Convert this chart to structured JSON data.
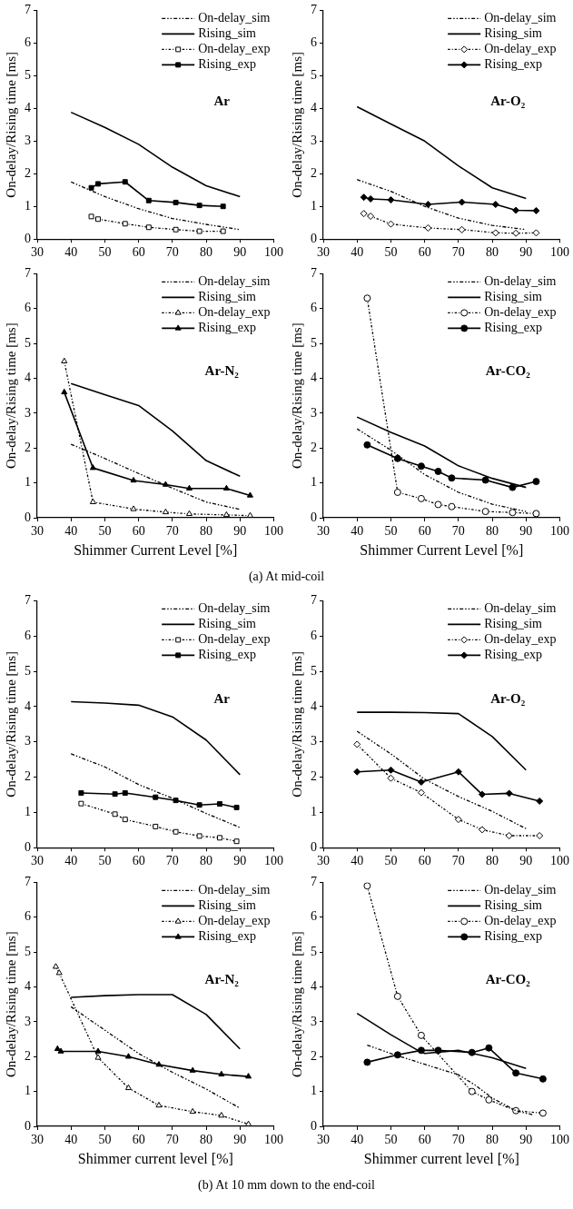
{
  "chart_data": [
    {
      "type": "line",
      "ylabel": "On-delay/Rising time [ms]",
      "xlim": [
        30,
        100
      ],
      "ylim": [
        0,
        7
      ],
      "xticks": [
        30,
        40,
        50,
        60,
        70,
        80,
        90,
        100
      ],
      "yticks": [
        0,
        1,
        2,
        3,
        4,
        5,
        6,
        7
      ],
      "grid": false,
      "legend": "top right",
      "annotations": [
        "Ar"
      ],
      "series": [
        {
          "name": "On-delay_sim",
          "color": "#000000",
          "line_style": "dashed",
          "marker": "none",
          "x": [
            40,
            50,
            60,
            70,
            80,
            90
          ],
          "values": [
            1.75,
            1.3,
            0.93,
            0.63,
            0.45,
            0.29
          ]
        },
        {
          "name": "Rising_sim",
          "color": "#000000",
          "line_style": "solid",
          "marker": "none",
          "x": [
            40,
            50,
            60,
            70,
            80,
            90
          ],
          "values": [
            3.88,
            3.42,
            2.9,
            2.2,
            1.63,
            1.3
          ]
        },
        {
          "name": "On-delay_exp",
          "color": "#000000",
          "line_style": "dotted",
          "marker": "square",
          "x": [
            46,
            48,
            56,
            63,
            71,
            78,
            85
          ],
          "values": [
            0.69,
            0.61,
            0.47,
            0.36,
            0.29,
            0.24,
            0.24
          ]
        },
        {
          "name": "Rising_exp",
          "color": "#000000",
          "line_style": "solid",
          "marker": "square",
          "x": [
            46,
            48,
            56,
            63,
            71,
            78,
            85
          ],
          "values": [
            1.57,
            1.69,
            1.75,
            1.18,
            1.12,
            1.03,
            1.0
          ]
        }
      ]
    },
    {
      "type": "line",
      "ylabel": "On-delay/Rising time [ms]",
      "xlim": [
        30,
        100
      ],
      "ylim": [
        0,
        7
      ],
      "xticks": [
        30,
        40,
        50,
        60,
        70,
        80,
        90,
        100
      ],
      "yticks": [
        0,
        1,
        2,
        3,
        4,
        5,
        6,
        7
      ],
      "grid": false,
      "legend": "top right",
      "annotations": [
        "Ar-O₂"
      ],
      "series": [
        {
          "name": "On-delay_sim",
          "color": "#000000",
          "line_style": "dashed",
          "marker": "none",
          "x": [
            40,
            50,
            60,
            70,
            80,
            90
          ],
          "values": [
            1.82,
            1.46,
            1.0,
            0.64,
            0.42,
            0.29
          ]
        },
        {
          "name": "Rising_sim",
          "color": "#000000",
          "line_style": "solid",
          "marker": "none",
          "x": [
            40,
            50,
            60,
            70,
            80,
            90
          ],
          "values": [
            4.05,
            3.52,
            3.0,
            2.24,
            1.57,
            1.24
          ]
        },
        {
          "name": "On-delay_exp",
          "color": "#000000",
          "line_style": "dotted",
          "marker": "diamond",
          "x": [
            42,
            44,
            50,
            61,
            71,
            81,
            87,
            93
          ],
          "values": [
            0.78,
            0.7,
            0.46,
            0.34,
            0.29,
            0.19,
            0.18,
            0.19
          ]
        },
        {
          "name": "Rising_exp",
          "color": "#000000",
          "line_style": "solid",
          "marker": "diamond",
          "x": [
            42,
            44,
            50,
            61,
            71,
            81,
            87,
            93
          ],
          "values": [
            1.28,
            1.23,
            1.2,
            1.06,
            1.13,
            1.06,
            0.88,
            0.87
          ]
        }
      ]
    },
    {
      "type": "line",
      "xlabel": "Shimmer Current Level [%]",
      "ylabel": "On-delay/Rising time [ms]",
      "xlim": [
        30,
        100
      ],
      "ylim": [
        0,
        7
      ],
      "xticks": [
        30,
        40,
        50,
        60,
        70,
        80,
        90,
        100
      ],
      "yticks": [
        0,
        1,
        2,
        3,
        4,
        5,
        6,
        7
      ],
      "grid": false,
      "legend": "top right",
      "annotations": [
        "Ar-N₂",
        "(a) At mid-coil"
      ],
      "series": [
        {
          "name": "On-delay_sim",
          "color": "#000000",
          "line_style": "dashed",
          "marker": "none",
          "x": [
            40,
            50,
            60,
            70,
            80,
            90
          ],
          "values": [
            2.11,
            1.7,
            1.27,
            0.85,
            0.45,
            0.24
          ]
        },
        {
          "name": "Rising_sim",
          "color": "#000000",
          "line_style": "solid",
          "marker": "none",
          "x": [
            40,
            50,
            60,
            70,
            80,
            90
          ],
          "values": [
            3.85,
            3.53,
            3.22,
            2.49,
            1.64,
            1.19
          ]
        },
        {
          "name": "On-delay_exp",
          "color": "#000000",
          "line_style": "dotted",
          "marker": "triangle",
          "x": [
            38,
            46.5,
            58.5,
            68,
            75,
            86,
            93
          ],
          "values": [
            4.49,
            0.45,
            0.25,
            0.16,
            0.11,
            0.08,
            0.06
          ]
        },
        {
          "name": "Rising_exp",
          "color": "#000000",
          "line_style": "solid",
          "marker": "triangle",
          "x": [
            38,
            46.5,
            58.5,
            68,
            75,
            86,
            93
          ],
          "values": [
            3.6,
            1.43,
            1.07,
            0.95,
            0.84,
            0.84,
            0.64
          ]
        }
      ]
    },
    {
      "type": "line",
      "xlabel": "Shimmer Current Level [%]",
      "ylabel": "On-delay/Rising time [ms]",
      "xlim": [
        30,
        100
      ],
      "ylim": [
        0,
        7
      ],
      "xticks": [
        30,
        40,
        50,
        60,
        70,
        80,
        90,
        100
      ],
      "yticks": [
        0,
        1,
        2,
        3,
        4,
        5,
        6,
        7
      ],
      "grid": false,
      "legend": "top right",
      "annotations": [
        "Ar-CO₂"
      ],
      "series": [
        {
          "name": "On-delay_sim",
          "color": "#000000",
          "line_style": "dashed",
          "marker": "none",
          "x": [
            40,
            50,
            60,
            70,
            80,
            90
          ],
          "values": [
            2.55,
            1.94,
            1.24,
            0.73,
            0.39,
            0.18
          ]
        },
        {
          "name": "Rising_sim",
          "color": "#000000",
          "line_style": "solid",
          "marker": "none",
          "x": [
            40,
            50,
            60,
            70,
            80,
            90
          ],
          "values": [
            2.89,
            2.45,
            2.06,
            1.49,
            1.13,
            0.87
          ]
        },
        {
          "name": "On-delay_exp",
          "color": "#000000",
          "line_style": "dotted",
          "marker": "circle",
          "x": [
            43,
            52,
            59,
            64,
            68,
            78,
            86,
            93
          ],
          "values": [
            6.3,
            0.73,
            0.55,
            0.38,
            0.32,
            0.18,
            0.15,
            0.12
          ]
        },
        {
          "name": "Rising_exp",
          "color": "#000000",
          "line_style": "solid",
          "marker": "circle",
          "x": [
            43,
            52,
            59,
            64,
            68,
            78,
            86,
            93
          ],
          "values": [
            2.09,
            1.7,
            1.48,
            1.33,
            1.14,
            1.08,
            0.87,
            1.04
          ]
        }
      ]
    },
    {
      "type": "line",
      "ylabel": "On-delay/Rising time [ms]",
      "xlim": [
        30,
        100
      ],
      "ylim": [
        0,
        7
      ],
      "xticks": [
        30,
        40,
        50,
        60,
        70,
        80,
        90,
        100
      ],
      "yticks": [
        0,
        1,
        2,
        3,
        4,
        5,
        6,
        7
      ],
      "grid": false,
      "legend": "top right",
      "annotations": [
        "Ar"
      ],
      "series": [
        {
          "name": "On-delay_sim",
          "color": "#000000",
          "line_style": "dashed",
          "marker": "none",
          "x": [
            40,
            50,
            60,
            70,
            80,
            90
          ],
          "values": [
            2.66,
            2.29,
            1.79,
            1.4,
            0.97,
            0.57
          ]
        },
        {
          "name": "Rising_sim",
          "color": "#000000",
          "line_style": "solid",
          "marker": "none",
          "x": [
            40,
            50,
            60,
            70,
            80,
            90
          ],
          "values": [
            4.14,
            4.1,
            4.04,
            3.71,
            3.05,
            2.07
          ]
        },
        {
          "name": "On-delay_exp",
          "color": "#000000",
          "line_style": "dotted",
          "marker": "square",
          "x": [
            43,
            53,
            56,
            65,
            71,
            78,
            84,
            89
          ],
          "values": [
            1.25,
            0.95,
            0.8,
            0.6,
            0.45,
            0.33,
            0.28,
            0.18
          ]
        },
        {
          "name": "Rising_exp",
          "color": "#000000",
          "line_style": "solid",
          "marker": "square",
          "x": [
            43,
            53,
            56,
            65,
            71,
            78,
            84,
            89
          ],
          "values": [
            1.55,
            1.52,
            1.55,
            1.43,
            1.34,
            1.21,
            1.24,
            1.14
          ]
        }
      ]
    },
    {
      "type": "line",
      "ylabel": "On-delay/Rising time [ms]",
      "xlim": [
        30,
        100
      ],
      "ylim": [
        0,
        7
      ],
      "xticks": [
        30,
        40,
        50,
        60,
        70,
        80,
        90,
        100
      ],
      "yticks": [
        0,
        1,
        2,
        3,
        4,
        5,
        6,
        7
      ],
      "grid": false,
      "legend": "top right",
      "annotations": [
        "Ar-O₂"
      ],
      "series": [
        {
          "name": "On-delay_sim",
          "color": "#000000",
          "line_style": "dashed",
          "marker": "none",
          "x": [
            40,
            50,
            60,
            70,
            80,
            90
          ],
          "values": [
            3.3,
            2.66,
            1.94,
            1.45,
            1.03,
            0.54
          ]
        },
        {
          "name": "Rising_sim",
          "color": "#000000",
          "line_style": "solid",
          "marker": "none",
          "x": [
            40,
            50,
            60,
            70,
            80,
            90
          ],
          "values": [
            3.84,
            3.84,
            3.83,
            3.8,
            3.15,
            2.2
          ]
        },
        {
          "name": "On-delay_exp",
          "color": "#000000",
          "line_style": "dotted",
          "marker": "diamond",
          "x": [
            40,
            50,
            59,
            70,
            77,
            85,
            94
          ],
          "values": [
            2.93,
            1.97,
            1.56,
            0.8,
            0.51,
            0.34,
            0.34
          ]
        },
        {
          "name": "Rising_exp",
          "color": "#000000",
          "line_style": "solid",
          "marker": "diamond",
          "x": [
            40,
            50,
            59,
            70,
            77,
            85,
            94
          ],
          "values": [
            2.15,
            2.2,
            1.86,
            2.15,
            1.51,
            1.54,
            1.32
          ]
        }
      ]
    },
    {
      "type": "line",
      "xlabel": "Shimmer current level [%]",
      "ylabel": "On-delay/Rising time [ms]",
      "xlim": [
        30,
        100
      ],
      "ylim": [
        0,
        7
      ],
      "xticks": [
        30,
        40,
        50,
        60,
        70,
        80,
        90,
        100
      ],
      "yticks": [
        0,
        1,
        2,
        3,
        4,
        5,
        6,
        7
      ],
      "grid": false,
      "legend": "top right",
      "annotations": [
        "Ar-N₂",
        "(b) At 10 mm down to the end-coil"
      ],
      "series": [
        {
          "name": "On-delay_sim",
          "color": "#000000",
          "line_style": "dashed",
          "marker": "none",
          "x": [
            40,
            50,
            60,
            70,
            80,
            90
          ],
          "values": [
            3.43,
            2.76,
            2.09,
            1.55,
            1.07,
            0.52
          ]
        },
        {
          "name": "Rising_sim",
          "color": "#000000",
          "line_style": "solid",
          "marker": "none",
          "x": [
            40,
            50,
            60,
            70,
            80,
            90
          ],
          "values": [
            3.7,
            3.75,
            3.78,
            3.78,
            3.21,
            2.22
          ]
        },
        {
          "name": "On-delay_exp",
          "color": "#000000",
          "line_style": "dotted",
          "marker": "triangle",
          "x": [
            35.5,
            36.5,
            48,
            57,
            66,
            76,
            84.5,
            92.5
          ],
          "values": [
            4.58,
            4.4,
            1.97,
            1.1,
            0.6,
            0.42,
            0.31,
            0.06
          ]
        },
        {
          "name": "Rising_exp",
          "color": "#000000",
          "line_style": "solid",
          "marker": "triangle",
          "x": [
            36,
            37,
            48,
            57,
            66,
            76,
            84.5,
            92.5
          ],
          "values": [
            2.22,
            2.15,
            2.15,
            2.0,
            1.77,
            1.6,
            1.49,
            1.43
          ]
        }
      ]
    },
    {
      "type": "line",
      "xlabel": "Shimmer current level [%]",
      "ylabel": "On-delay/Rising time [ms]",
      "xlim": [
        30,
        100
      ],
      "ylim": [
        0,
        7
      ],
      "xticks": [
        30,
        40,
        50,
        60,
        70,
        80,
        90,
        100
      ],
      "yticks": [
        0,
        1,
        2,
        3,
        4,
        5,
        6,
        7
      ],
      "grid": false,
      "legend": "top right",
      "annotations": [
        "Ar-CO₂"
      ],
      "series": [
        {
          "name": "On-delay_sim",
          "color": "#000000",
          "line_style": "dashed",
          "marker": "none",
          "x": [
            43,
            50,
            60,
            70,
            75,
            80,
            87,
            92
          ],
          "values": [
            2.33,
            2.09,
            1.78,
            1.48,
            1.18,
            0.81,
            0.45,
            0.33
          ]
        },
        {
          "name": "Rising_sim",
          "color": "#000000",
          "line_style": "solid",
          "marker": "none",
          "x": [
            40,
            50,
            58,
            60,
            70,
            80,
            90
          ],
          "values": [
            3.24,
            2.63,
            2.18,
            2.09,
            2.18,
            1.97,
            1.66
          ]
        },
        {
          "name": "On-delay_exp",
          "color": "#000000",
          "line_style": "dotted",
          "marker": "circle",
          "x": [
            43,
            52,
            59,
            74,
            79,
            87,
            95
          ],
          "values": [
            6.9,
            3.73,
            2.61,
            1.0,
            0.76,
            0.45,
            0.38
          ]
        },
        {
          "name": "Rising_exp",
          "color": "#000000",
          "line_style": "solid",
          "marker": "circle",
          "x": [
            43,
            52,
            59,
            64,
            74,
            79,
            87,
            95
          ],
          "values": [
            1.84,
            2.05,
            2.18,
            2.18,
            2.12,
            2.25,
            1.53,
            1.36
          ]
        }
      ]
    }
  ]
}
